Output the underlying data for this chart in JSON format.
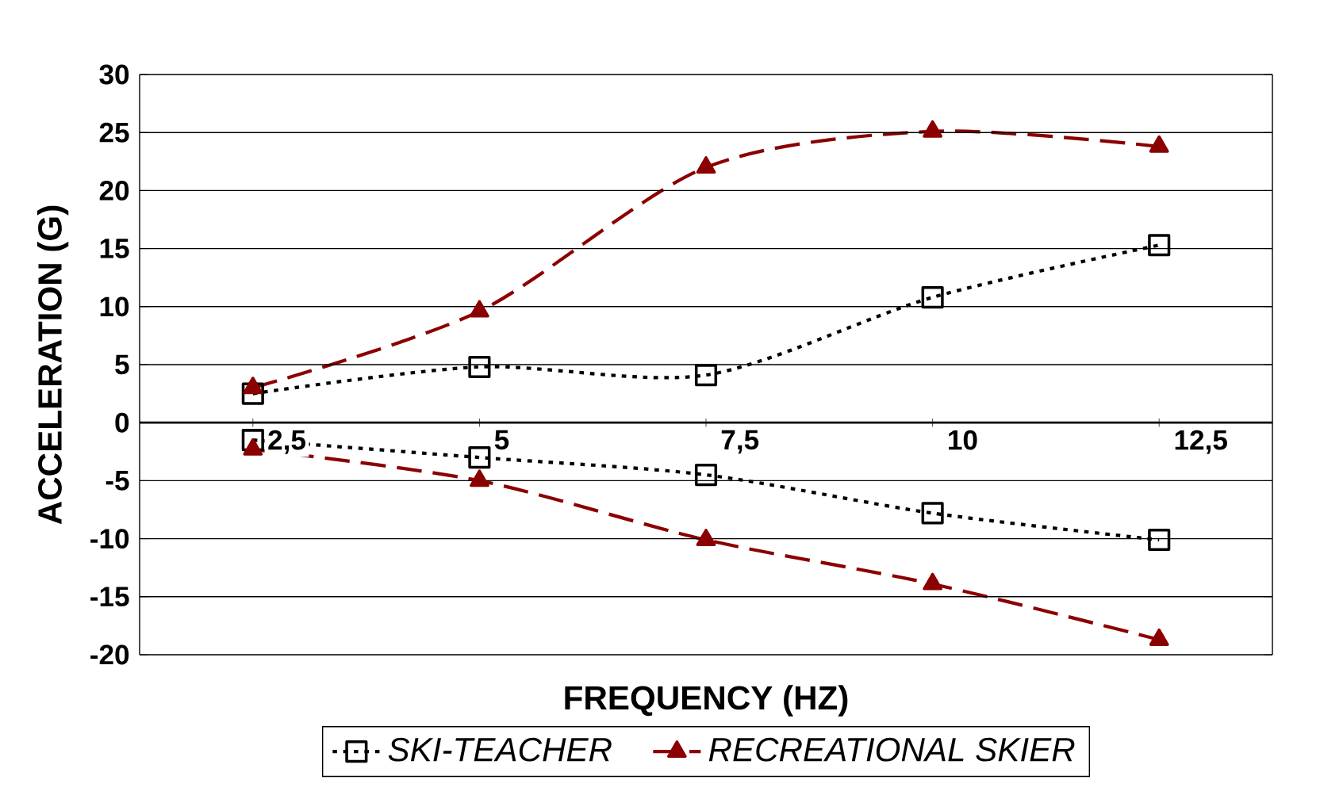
{
  "chart_data": {
    "type": "line",
    "xlabel": "FREQUENCY (HZ)",
    "ylabel": "ACCELERATION (G)",
    "categories": [
      "2,5",
      "5",
      "7,5",
      "10",
      "12,5"
    ],
    "ylim": [
      -20,
      30
    ],
    "yticks": [
      -20,
      -15,
      -10,
      -5,
      0,
      5,
      10,
      15,
      20,
      25,
      30
    ],
    "grid": "y",
    "legend": "bottom",
    "series": [
      {
        "name": "SKI-TEACHER",
        "color": "#000000",
        "marker": "square",
        "line_style": "dotted",
        "values": [
          2.5,
          4.8,
          4.1,
          10.8,
          15.3
        ]
      },
      {
        "name": "RECREATIONAL SKIER",
        "color": "#8b0000",
        "marker": "triangle",
        "line_style": "dashed",
        "values": [
          3,
          9.6,
          22,
          25.1,
          23.8
        ]
      },
      {
        "color": "#000000",
        "marker": "square",
        "line_style": "dotted",
        "values": [
          -1.5,
          -3,
          -4.5,
          -7.8,
          -10.1
        ]
      },
      {
        "color": "#8b0000",
        "marker": "triangle",
        "line_style": "dashed",
        "values": [
          -2.3,
          -5,
          -10.1,
          -13.9,
          -18.7
        ]
      }
    ]
  }
}
